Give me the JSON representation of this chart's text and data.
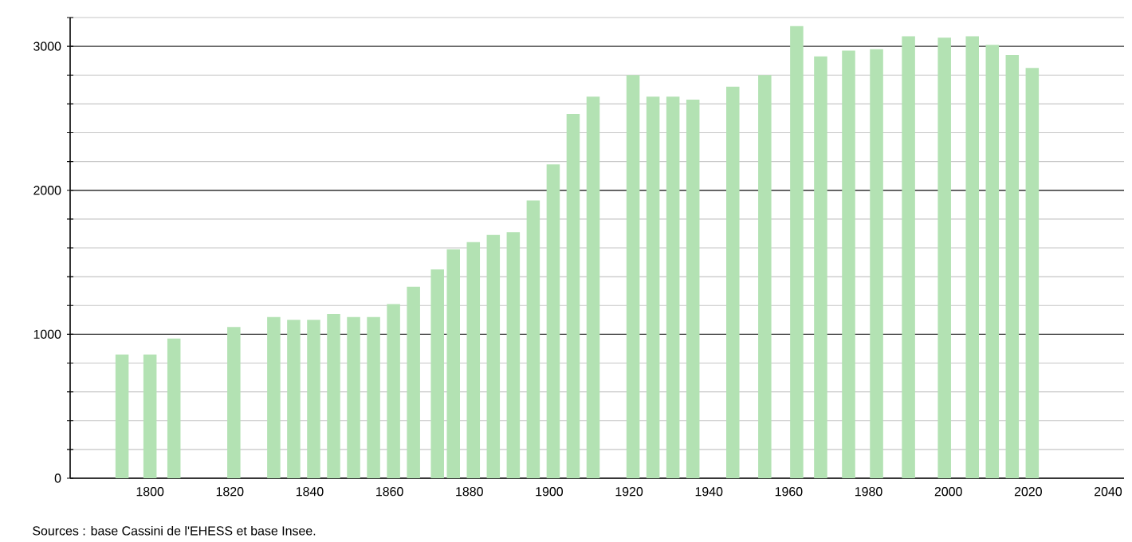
{
  "chart_data": {
    "type": "bar",
    "color": "#b3e2b3",
    "x": [
      1793,
      1800,
      1806,
      1821,
      1831,
      1836,
      1841,
      1846,
      1851,
      1856,
      1861,
      1866,
      1872,
      1876,
      1881,
      1886,
      1891,
      1896,
      1901,
      1906,
      1911,
      1921,
      1926,
      1931,
      1936,
      1946,
      1954,
      1962,
      1968,
      1975,
      1982,
      1990,
      1999,
      2006,
      2011,
      2016,
      2021
    ],
    "values": [
      860,
      860,
      970,
      1050,
      1120,
      1100,
      1100,
      1140,
      1120,
      1120,
      1210,
      1330,
      1450,
      1590,
      1640,
      1690,
      1710,
      1930,
      2180,
      2530,
      2650,
      2800,
      2650,
      2650,
      2630,
      2720,
      2800,
      3140,
      2930,
      2970,
      2980,
      3070,
      3060,
      3070,
      3010,
      2940,
      2850
    ],
    "xlim": [
      1780,
      2044
    ],
    "xticks": [
      1800,
      1820,
      1840,
      1860,
      1880,
      1900,
      1920,
      1940,
      1960,
      1980,
      2000,
      2020,
      2040
    ],
    "ylim": [
      0,
      3200
    ],
    "yticks": [
      0,
      {
        "value": 200,
        "label": null
      },
      {
        "value": 400,
        "label": null
      },
      {
        "value": 600,
        "label": null
      },
      {
        "value": 800,
        "label": null
      },
      1000,
      {
        "value": 1200,
        "label": null
      },
      {
        "value": 1400,
        "label": null
      },
      {
        "value": 1600,
        "label": null
      },
      {
        "value": 1800,
        "label": null
      },
      2000,
      {
        "value": 2200,
        "label": null
      },
      {
        "value": 2400,
        "label": null
      },
      {
        "value": 2600,
        "label": null
      },
      {
        "value": 2800,
        "label": null
      },
      3000,
      {
        "value": 3200,
        "label": null
      }
    ],
    "grid": "y",
    "annotations": [
      "Sources : base Cassini de l'EHESS et base Insee."
    ]
  }
}
